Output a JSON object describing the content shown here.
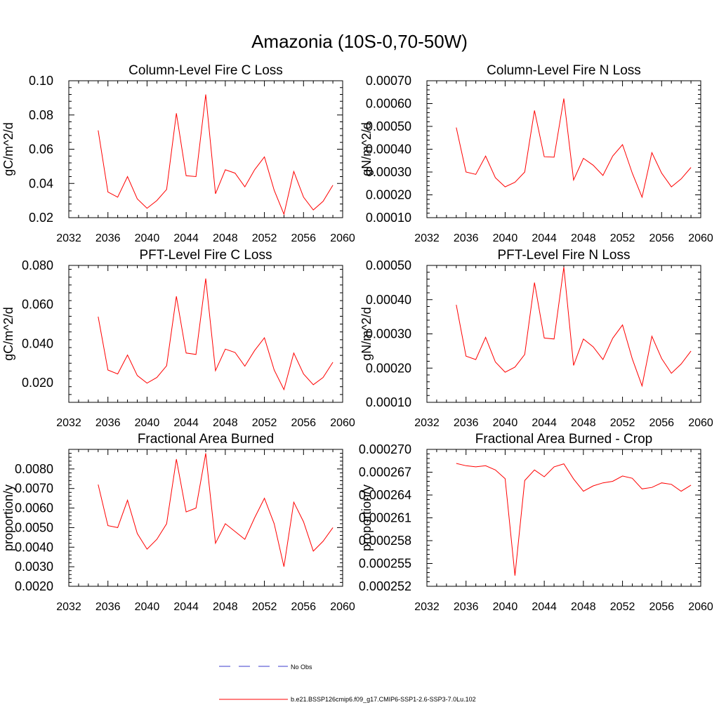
{
  "figure_title": "Amazonia (10S-0,70-50W)",
  "colors": {
    "series": "#ff0000",
    "obs": "#3b3bcc",
    "axis": "#000000"
  },
  "legend": {
    "obs_label": "No Obs",
    "model_label": "b.e21.BSSP126cmip6.f09_g17.CMIP6-SSP1-2.6-SSP3-7.0Lu.102"
  },
  "chart_data": [
    {
      "type": "line",
      "title": "Column-Level Fire C Loss",
      "ylabel": "gC/m^2/d",
      "xlim": [
        2032,
        2060
      ],
      "ylim": [
        0.02,
        0.1
      ],
      "x_ticks": [
        "2032",
        "2036",
        "2040",
        "2044",
        "2048",
        "2052",
        "2056",
        "2060"
      ],
      "y_ticks": [
        "0.02",
        "0.04",
        "0.06",
        "0.08",
        "0.10"
      ],
      "x": [
        2035,
        2036,
        2037,
        2038,
        2039,
        2040,
        2041,
        2042,
        2043,
        2044,
        2045,
        2046,
        2047,
        2048,
        2049,
        2050,
        2051,
        2052,
        2053,
        2054,
        2055,
        2056,
        2057,
        2058,
        2059
      ],
      "values": [
        0.071,
        0.035,
        0.032,
        0.044,
        0.031,
        0.0255,
        0.03,
        0.0365,
        0.081,
        0.0445,
        0.044,
        0.092,
        0.034,
        0.048,
        0.046,
        0.038,
        0.048,
        0.0555,
        0.036,
        0.022,
        0.047,
        0.032,
        0.0245,
        0.0295,
        0.039
      ]
    },
    {
      "type": "line",
      "title": "Column-Level Fire N Loss",
      "ylabel": "gN/m^2/d",
      "xlim": [
        2032,
        2060
      ],
      "ylim": [
        0.0001,
        0.0007
      ],
      "x_ticks": [
        "2032",
        "2036",
        "2040",
        "2044",
        "2048",
        "2052",
        "2056",
        "2060"
      ],
      "y_ticks": [
        "0.00010",
        "0.00020",
        "0.00030",
        "0.00040",
        "0.00050",
        "0.00060",
        "0.00070"
      ],
      "x": [
        2035,
        2036,
        2037,
        2038,
        2039,
        2040,
        2041,
        2042,
        2043,
        2044,
        2045,
        2046,
        2047,
        2048,
        2049,
        2050,
        2051,
        2052,
        2053,
        2054,
        2055,
        2056,
        2057,
        2058,
        2059
      ],
      "values": [
        0.000495,
        0.0003,
        0.00029,
        0.00037,
        0.000275,
        0.000235,
        0.000255,
        0.0003,
        0.00057,
        0.000367,
        0.000365,
        0.000622,
        0.000265,
        0.00036,
        0.00033,
        0.000285,
        0.00037,
        0.00042,
        0.000295,
        0.00019,
        0.000385,
        0.000295,
        0.000235,
        0.00027,
        0.00032
      ]
    },
    {
      "type": "line",
      "title": "PFT-Level Fire C Loss",
      "ylabel": "gC/m^2/d",
      "xlim": [
        2032,
        2060
      ],
      "ylim": [
        0.01,
        0.08
      ],
      "x_ticks": [
        "2032",
        "2036",
        "2040",
        "2044",
        "2048",
        "2052",
        "2056",
        "2060"
      ],
      "y_ticks": [
        "0.020",
        "0.040",
        "0.060",
        "0.080"
      ],
      "x": [
        2035,
        2036,
        2037,
        2038,
        2039,
        2040,
        2041,
        2042,
        2043,
        2044,
        2045,
        2046,
        2047,
        2048,
        2049,
        2050,
        2051,
        2052,
        2053,
        2054,
        2055,
        2056,
        2057,
        2058,
        2059
      ],
      "values": [
        0.0538,
        0.0265,
        0.0245,
        0.0342,
        0.0237,
        0.0198,
        0.0227,
        0.0287,
        0.0642,
        0.0352,
        0.0345,
        0.0733,
        0.0262,
        0.0372,
        0.0355,
        0.0285,
        0.0365,
        0.043,
        0.0265,
        0.0165,
        0.0352,
        0.0245,
        0.019,
        0.0227,
        0.0305
      ]
    },
    {
      "type": "line",
      "title": "PFT-Level Fire N Loss",
      "ylabel": "gN/m^2/d",
      "xlim": [
        2032,
        2060
      ],
      "ylim": [
        0.0001,
        0.0005
      ],
      "x_ticks": [
        "2032",
        "2036",
        "2040",
        "2044",
        "2048",
        "2052",
        "2056",
        "2060"
      ],
      "y_ticks": [
        "0.00010",
        "0.00020",
        "0.00030",
        "0.00040",
        "0.00050"
      ],
      "x": [
        2035,
        2036,
        2037,
        2038,
        2039,
        2040,
        2041,
        2042,
        2043,
        2044,
        2045,
        2046,
        2047,
        2048,
        2049,
        2050,
        2051,
        2052,
        2053,
        2054,
        2055,
        2056,
        2057,
        2058,
        2059
      ],
      "values": [
        0.000385,
        0.000235,
        0.000225,
        0.00029,
        0.000218,
        0.000188,
        0.000203,
        0.00024,
        0.00045,
        0.000288,
        0.000285,
        0.000495,
        0.000208,
        0.000285,
        0.000262,
        0.000225,
        0.000287,
        0.000326,
        0.000227,
        0.000148,
        0.000293,
        0.000228,
        0.000185,
        0.000212,
        0.00025
      ]
    },
    {
      "type": "line",
      "title": "Fractional Area Burned",
      "ylabel": "proportion/y",
      "xlim": [
        2032,
        2060
      ],
      "ylim": [
        0.002,
        0.009
      ],
      "x_ticks": [
        "2032",
        "2036",
        "2040",
        "2044",
        "2048",
        "2052",
        "2056",
        "2060"
      ],
      "y_ticks": [
        "0.0020",
        "0.0030",
        "0.0040",
        "0.0050",
        "0.0060",
        "0.0070",
        "0.0080"
      ],
      "x": [
        2035,
        2036,
        2037,
        2038,
        2039,
        2040,
        2041,
        2042,
        2043,
        2044,
        2045,
        2046,
        2047,
        2048,
        2049,
        2050,
        2051,
        2052,
        2053,
        2054,
        2055,
        2056,
        2057,
        2058,
        2059
      ],
      "values": [
        0.0072,
        0.0051,
        0.005,
        0.0064,
        0.0047,
        0.0039,
        0.0044,
        0.0052,
        0.0085,
        0.0058,
        0.006,
        0.0088,
        0.0042,
        0.0052,
        0.0048,
        0.0044,
        0.0055,
        0.0065,
        0.0052,
        0.003,
        0.0063,
        0.0053,
        0.0038,
        0.0043,
        0.005
      ]
    },
    {
      "type": "line",
      "title": "Fractional Area Burned - Crop",
      "ylabel": "proportion/y",
      "xlim": [
        2032,
        2060
      ],
      "ylim": [
        0.000252,
        0.00027
      ],
      "x_ticks": [
        "2032",
        "2036",
        "2040",
        "2044",
        "2048",
        "2052",
        "2056",
        "2060"
      ],
      "y_ticks": [
        "0.000252",
        "0.000255",
        "0.000258",
        "0.000261",
        "0.000264",
        "0.000267",
        "0.000270"
      ],
      "x": [
        2035,
        2036,
        2037,
        2038,
        2039,
        2040,
        2041,
        2042,
        2043,
        2044,
        2045,
        2046,
        2047,
        2048,
        2049,
        2050,
        2051,
        2052,
        2053,
        2054,
        2055,
        2056,
        2057,
        2058,
        2059
      ],
      "values": [
        0.00026815,
        0.00026785,
        0.0002677,
        0.00026785,
        0.0002673,
        0.00026615,
        0.0002534,
        0.0002659,
        0.0002673,
        0.0002664,
        0.0002677,
        0.0002681,
        0.0002661,
        0.0002645,
        0.0002652,
        0.0002656,
        0.0002658,
        0.0002665,
        0.0002662,
        0.0002648,
        0.000265,
        0.0002656,
        0.0002654,
        0.0002645,
        0.0002653
      ]
    }
  ]
}
